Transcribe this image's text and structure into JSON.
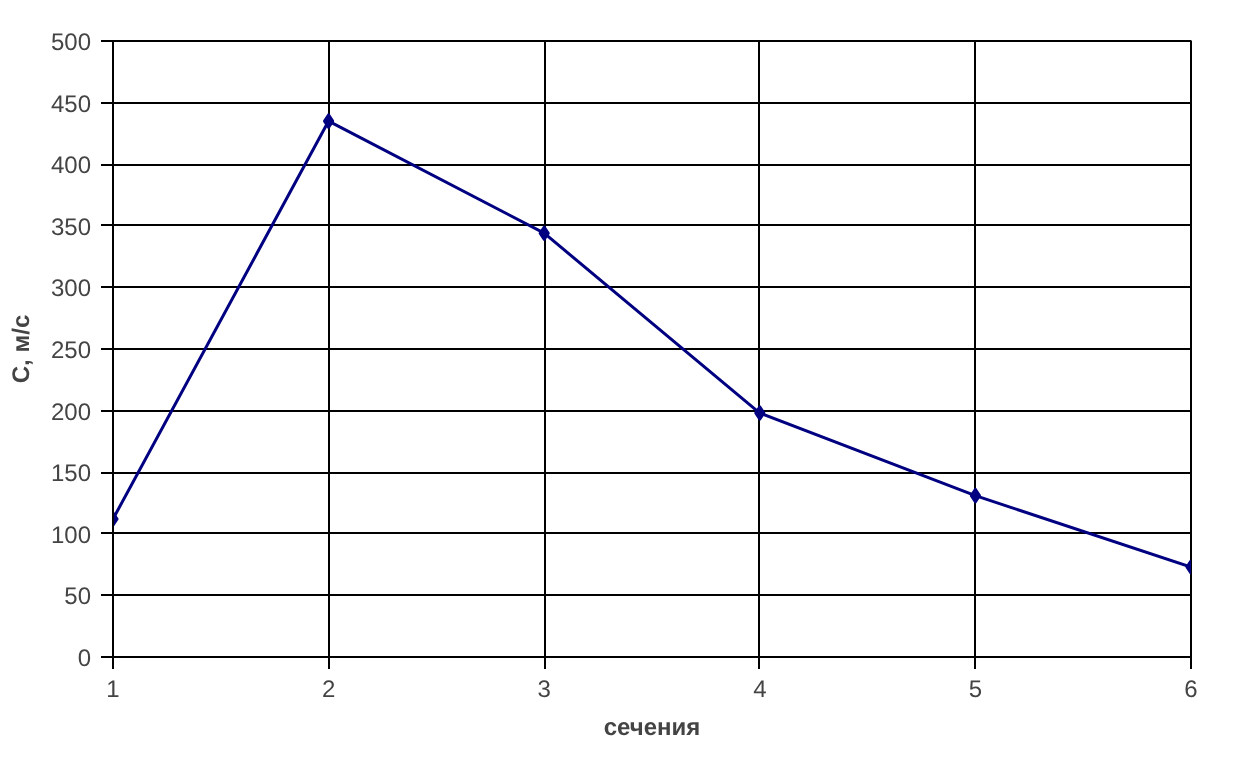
{
  "chart_data": {
    "type": "line",
    "xlabel": "сечения",
    "ylabel": "C, м/c",
    "x": [
      1,
      2,
      3,
      4,
      5,
      6
    ],
    "series": [
      {
        "color": "#000080",
        "values": [
          112,
          435,
          344,
          198,
          131,
          73
        ]
      }
    ],
    "xlim": [
      1,
      6
    ],
    "xticks": [
      1,
      2,
      3,
      4,
      5,
      6
    ],
    "ylim": [
      0,
      500
    ],
    "yticks": [
      0,
      50,
      100,
      150,
      200,
      250,
      300,
      350,
      400,
      450,
      500
    ],
    "grid": true,
    "marker": "diamond",
    "line_style": "solid"
  }
}
